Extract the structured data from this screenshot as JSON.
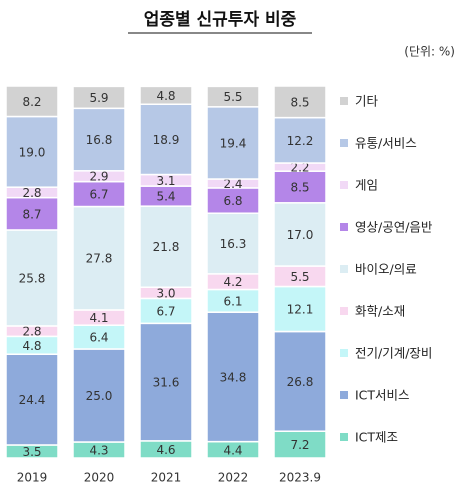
{
  "chart_data": {
    "type": "stacked_bar",
    "title": "업종별 신규투자 비중",
    "unit": "(단위: %)",
    "categories": [
      "2019",
      "2020",
      "2021",
      "2022",
      "2023.9"
    ],
    "ylim": [
      0,
      100
    ],
    "series": [
      {
        "name": "ICT제조",
        "color": "#7fdcc6",
        "values": [
          3.5,
          4.3,
          4.6,
          4.4,
          7.2
        ],
        "value_labels": [
          "3.5",
          "4.3",
          "4.6",
          "4.4",
          "7.2"
        ]
      },
      {
        "name": "ICT서비스",
        "color": "#8eaadb",
        "values": [
          24.4,
          25.0,
          31.6,
          34.8,
          26.8
        ],
        "value_labels": [
          "24.4",
          "25.0",
          "31.6",
          "34.8",
          "26.8"
        ]
      },
      {
        "name": "전기/기계/장비",
        "color": "#c4f6f8",
        "values": [
          4.8,
          6.4,
          6.7,
          6.1,
          12.1
        ],
        "value_labels": [
          "4.8",
          "6.4",
          "6.7",
          "6.1",
          "12.1"
        ]
      },
      {
        "name": "화학/소재",
        "color": "#f8d8ef",
        "values": [
          2.8,
          4.1,
          3.0,
          4.2,
          5.5
        ],
        "value_labels": [
          "2.8",
          "4.1",
          "3.0",
          "4.2",
          "5.5"
        ]
      },
      {
        "name": "바이오/의료",
        "color": "#dcedf3",
        "values": [
          25.8,
          27.8,
          21.8,
          16.3,
          17.0
        ],
        "value_labels": [
          "25.8",
          "27.8",
          "21.8",
          "16.3",
          "17.0"
        ]
      },
      {
        "name": "영상/공연/음반",
        "color": "#b486e8",
        "values": [
          8.7,
          6.7,
          5.4,
          6.8,
          8.5
        ],
        "value_labels": [
          "8.7",
          "6.7",
          "5.4",
          "6.8",
          "8.5"
        ]
      },
      {
        "name": "게임",
        "color": "#f1d9f6",
        "values": [
          2.8,
          2.9,
          3.1,
          2.4,
          2.2
        ],
        "value_labels": [
          "2.8",
          "2.9",
          "3.1",
          "2.4",
          "2.2"
        ]
      },
      {
        "name": "유통/서비스",
        "color": "#b6c8e6",
        "values": [
          19.0,
          16.8,
          18.9,
          19.4,
          12.2
        ],
        "value_labels": [
          "19.0",
          "16.8",
          "18.9",
          "19.4",
          "12.2"
        ]
      },
      {
        "name": "기타",
        "color": "#d2d2d2",
        "values": [
          8.2,
          5.9,
          4.8,
          5.5,
          8.5
        ],
        "value_labels": [
          "8.2",
          "5.9",
          "4.8",
          "5.5",
          "8.5"
        ]
      }
    ]
  }
}
